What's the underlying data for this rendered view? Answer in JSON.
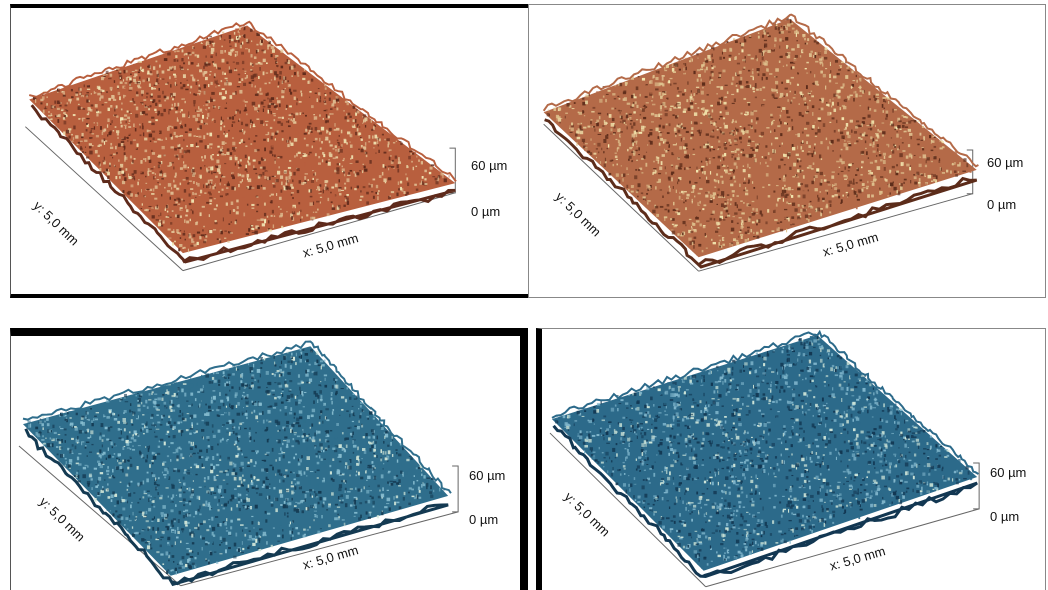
{
  "figure": {
    "panels": [
      {
        "theme": "copper",
        "colors": {
          "base": "#b85f3e",
          "dark": "#5e2a1b",
          "light": "#e3c79a",
          "highlight": "#f1e7b5"
        },
        "labels": {
          "y_axis": "y: 5,0 mm",
          "x_axis": "x: 5,0 mm",
          "z_max": "60 µm",
          "z_min": "0 µm"
        }
      },
      {
        "theme": "copper",
        "colors": {
          "base": "#b46a48",
          "dark": "#5c2c1a",
          "light": "#dfc28e",
          "highlight": "#f3e8b0"
        },
        "labels": {
          "y_axis": "y: 5,0 mm",
          "x_axis": "x: 5,0 mm",
          "z_max": "60 µm",
          "z_min": "0 µm"
        }
      },
      {
        "theme": "blue",
        "colors": {
          "base": "#2f6e8c",
          "dark": "#143a52",
          "light": "#86bccf",
          "highlight": "#d6e9da"
        },
        "labels": {
          "y_axis": "y: 5,0 mm",
          "x_axis": "x: 5,0 mm",
          "z_max": "60 µm",
          "z_min": "0 µm"
        }
      },
      {
        "theme": "blue",
        "colors": {
          "base": "#2c6a8a",
          "dark": "#123752",
          "light": "#7fb5cb",
          "highlight": "#cfe5d8"
        },
        "labels": {
          "y_axis": "y: 5,0 mm",
          "x_axis": "x: 5,0 mm",
          "z_max": "60 µm",
          "z_min": "0 µm"
        }
      }
    ]
  }
}
